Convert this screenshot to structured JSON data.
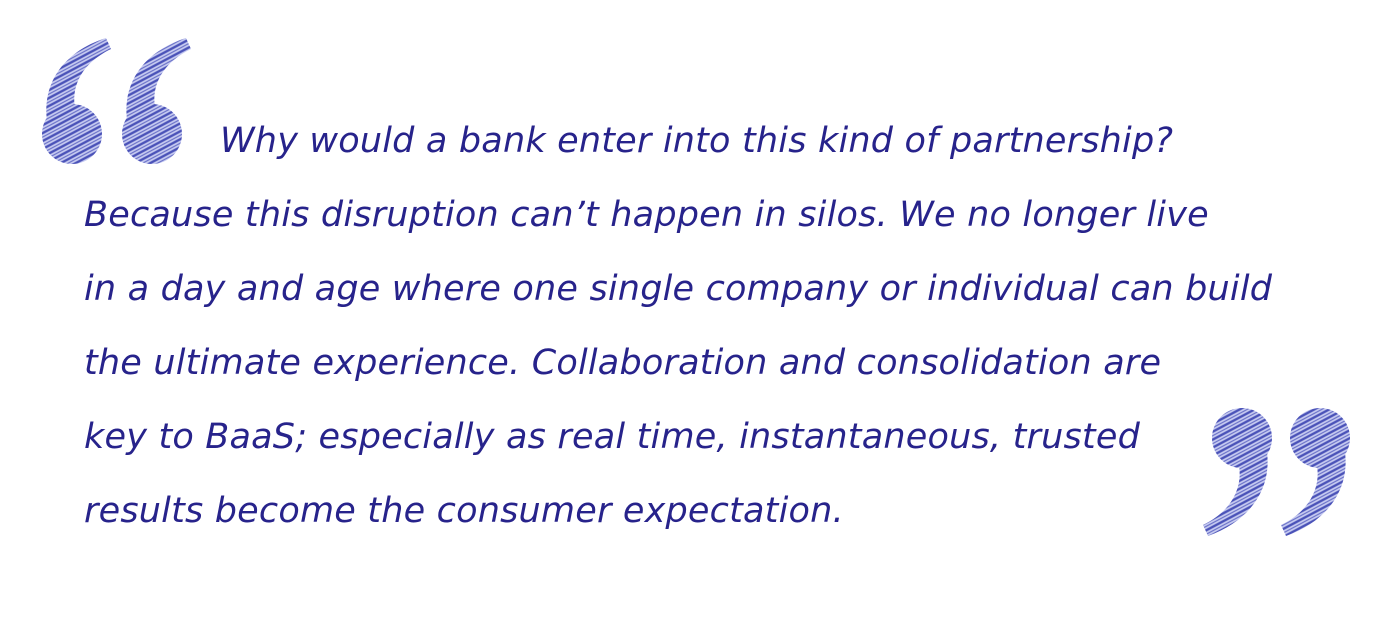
{
  "quote": {
    "lines": [
      "Why would a bank enter into this kind of partnership?",
      "Because this disruption can’t happen in silos. We no longer live",
      "in a day and age where one single company or individual can build",
      "the ultimate experience. Collaboration and consolidation are",
      "key to BaaS; especially as real time, instantaneous, trusted",
      "results become the consumer expectation."
    ],
    "text_color": "#27238b"
  },
  "decorations": {
    "open_quote_icon": "open-quote-mark",
    "close_quote_icon": "close-quote-mark",
    "quote_mark_color": "#4a52b8",
    "quote_mark_hatch_color": "#c9cdf2"
  }
}
